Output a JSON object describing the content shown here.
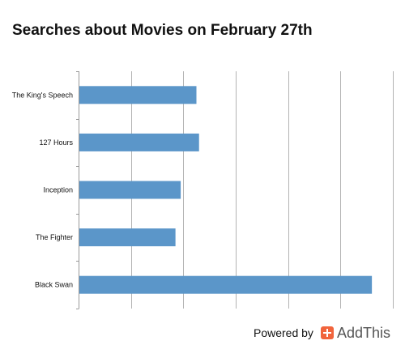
{
  "chart_data": {
    "type": "bar",
    "orientation": "horizontal",
    "title": "Searches about Movies on February 27th",
    "categories": [
      "The King's Speech",
      "127 Hours",
      "Inception",
      "The Fighter",
      "Black Swan"
    ],
    "values": [
      2.25,
      2.3,
      1.95,
      1.85,
      5.6
    ],
    "xlim": [
      0,
      6
    ],
    "grid": "vertical",
    "bar_color": "#5b96c9"
  },
  "footer": {
    "powered_by": "Powered by",
    "brand": "AddThis",
    "brand_color": "#f1643c"
  }
}
